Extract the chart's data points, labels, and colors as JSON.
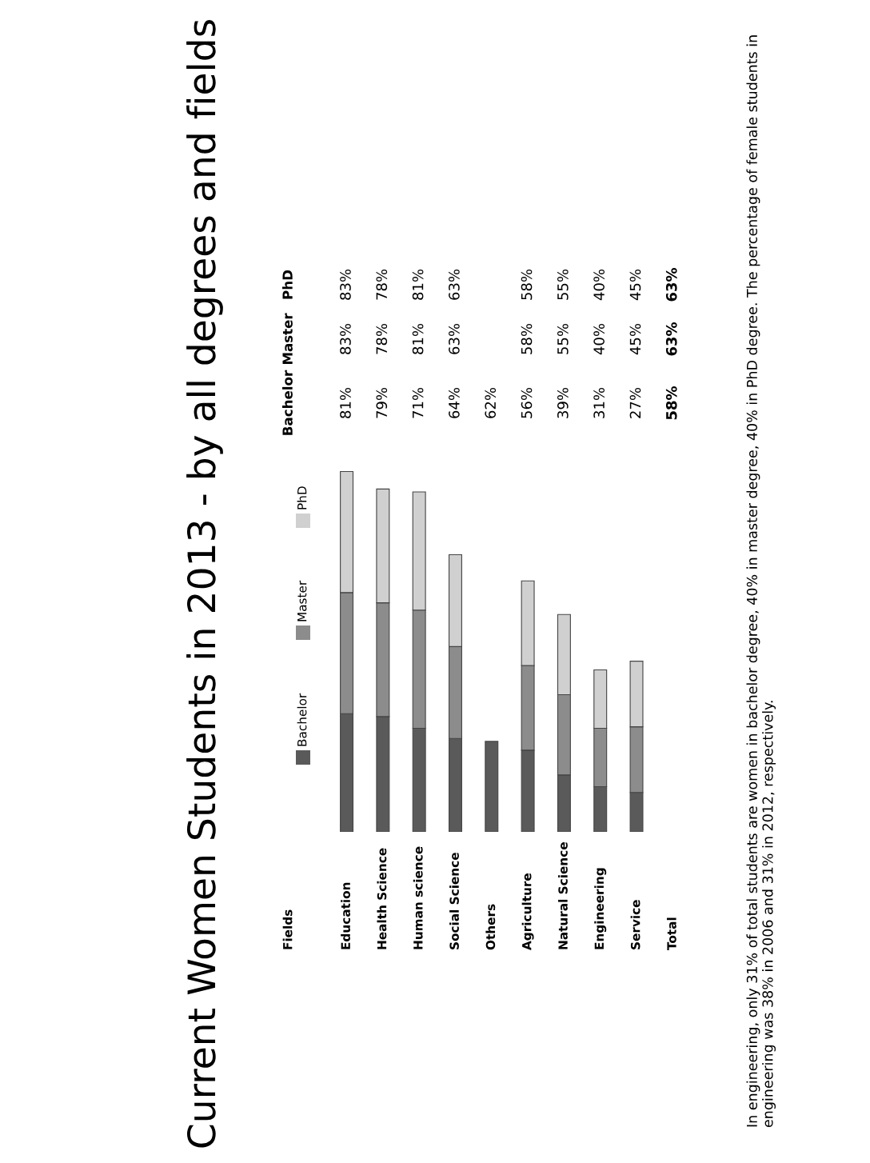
{
  "chart_data": {
    "type": "bar",
    "stacked": true,
    "title": "Current Women Students in 2013 - by all degrees and fields",
    "categories": [
      "Education",
      "Health Science",
      "Human science",
      "Social Science",
      "Others",
      "Agriculture",
      "Natural Science",
      "Engineering",
      "Service",
      "Total"
    ],
    "series": [
      {
        "name": "Bachelor",
        "color": "#5a5a5a",
        "values": [
          81,
          79,
          71,
          64,
          62,
          56,
          39,
          31,
          27,
          null
        ],
        "value_labels": [
          "81%",
          "79%",
          "71%",
          "64%",
          "62%",
          "56%",
          "39%",
          "31%",
          "27%",
          "58%"
        ]
      },
      {
        "name": "Master",
        "color": "#8c8c8c",
        "values": [
          83,
          78,
          81,
          63,
          null,
          58,
          55,
          40,
          45,
          null
        ],
        "value_labels": [
          "83%",
          "78%",
          "81%",
          "63%",
          null,
          "58%",
          "55%",
          "40%",
          "45%",
          "63%"
        ]
      },
      {
        "name": "PhD",
        "color": "#d0d0d0",
        "values": [
          83,
          78,
          81,
          63,
          null,
          58,
          55,
          40,
          45,
          null
        ],
        "value_labels": [
          "83%",
          "78%",
          "81%",
          "63%",
          null,
          "58%",
          "55%",
          "40%",
          "45%",
          "63%"
        ]
      }
    ],
    "ylim": [
      0,
      250
    ],
    "legend": "top left",
    "annotations": [
      "Fields",
      "In engineering, only 31% of total students are women in bachelor degree, 40% in master degree, 40% in PhD degree. The percentage of female students in engineering was 38% in 2006 and 31% in 2012, respectively."
    ]
  }
}
